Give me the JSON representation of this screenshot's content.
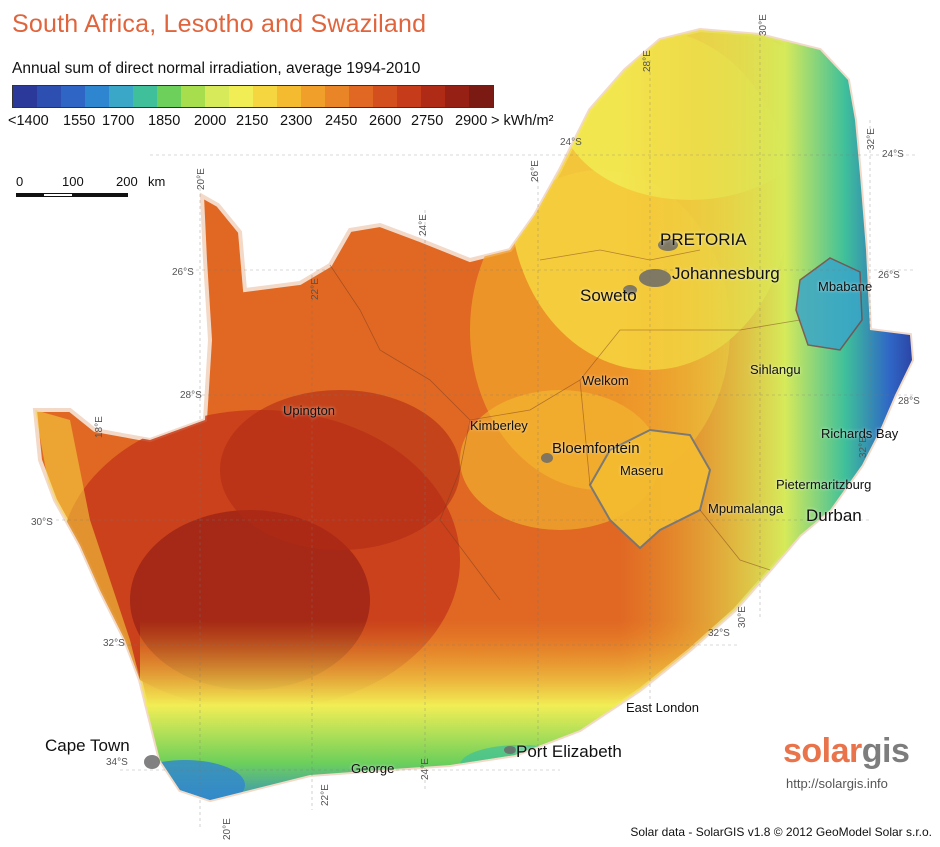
{
  "title": "South Africa, Lesotho and Swaziland",
  "subtitle": "Annual sum of direct normal irradiation, average 1994-2010",
  "legend": {
    "colors": [
      "#2b3a9a",
      "#2d4fb2",
      "#2f66c6",
      "#2f86d0",
      "#3aa6c8",
      "#3fc09a",
      "#6dd05a",
      "#a6de4e",
      "#d6ea5a",
      "#f1ee55",
      "#f6d640",
      "#f4bb30",
      "#f09f2a",
      "#e98427",
      "#e06823",
      "#d44f1e",
      "#c63b1a",
      "#b02b16",
      "#962014",
      "#7a1a12"
    ],
    "ticks": [
      "<1400",
      "1550",
      "1700",
      "1850",
      "2000",
      "2150",
      "2300",
      "2450",
      "2600",
      "2750",
      "2900",
      "> kWh/m²"
    ]
  },
  "scale": {
    "labels": [
      "0",
      "100",
      "200",
      "km"
    ]
  },
  "cities": [
    {
      "name": "PRETORIA"
    },
    {
      "name": "Johannesburg"
    },
    {
      "name": "Soweto"
    },
    {
      "name": "Mbabane"
    },
    {
      "name": "Sihlangu"
    },
    {
      "name": "Welkom"
    },
    {
      "name": "Upington"
    },
    {
      "name": "Kimberley"
    },
    {
      "name": "Bloemfontein"
    },
    {
      "name": "Maseru"
    },
    {
      "name": "Richards Bay"
    },
    {
      "name": "Pietermaritzburg"
    },
    {
      "name": "Mpumalanga"
    },
    {
      "name": "Durban"
    },
    {
      "name": "East London"
    },
    {
      "name": "Port Elizabeth"
    },
    {
      "name": "George"
    },
    {
      "name": "Cape Town"
    }
  ],
  "grid_labels": {
    "lon": [
      "20°E",
      "22°E",
      "24°E",
      "26°E",
      "28°E",
      "30°E",
      "32°E",
      "30°E",
      "32°E",
      "22°E",
      "24°E",
      "20°E",
      "18°E"
    ],
    "lat": [
      "24°S",
      "24°S",
      "26°S",
      "26°S",
      "28°S",
      "28°S",
      "30°S",
      "32°S",
      "32°S",
      "34°S"
    ]
  },
  "logo": {
    "part1": "solar",
    "part2": "gis",
    "url": "http://solargis.info"
  },
  "credit": "Solar data - SolarGIS v1.8 © 2012 GeoModel Solar s.r.o."
}
